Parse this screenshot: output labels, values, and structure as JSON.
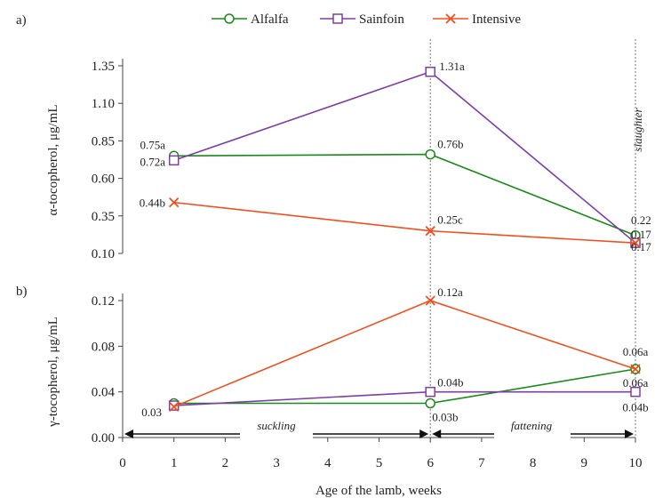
{
  "chart_data": [
    {
      "type": "line",
      "panel_label": "a)",
      "ylabel": "α-tocopherol, μg/mL",
      "ylim": [
        0.1,
        1.35
      ],
      "yticks": [
        "0.10",
        "0.35",
        "0.60",
        "0.85",
        "1.10",
        "1.35"
      ],
      "x": [
        1,
        6,
        10
      ],
      "series": [
        {
          "name": "Alfalfa",
          "color": "#1a8a1a",
          "marker": "circle",
          "values": [
            0.75,
            0.76,
            0.22
          ],
          "labels": [
            "0.75a",
            "0.76b",
            "0.22"
          ]
        },
        {
          "name": "Sainfoin",
          "color": "#7b3fa6",
          "marker": "square",
          "values": [
            0.72,
            1.31,
            0.17
          ],
          "labels": [
            "0.72a",
            "1.31a",
            "0.17"
          ]
        },
        {
          "name": "Intensive",
          "color": "#f0501e",
          "marker": "x",
          "values": [
            0.44,
            0.25,
            0.17
          ],
          "labels": [
            "0.44b",
            "0.25c",
            "0.17"
          ]
        }
      ],
      "annotation": "slaughter",
      "grid": false,
      "legend": "top"
    },
    {
      "type": "line",
      "panel_label": "b)",
      "ylabel": "γ-tocopherol, μg/mL",
      "xlabel": "Age of the lamb, weeks",
      "xlim": [
        0,
        10
      ],
      "xticks": [
        "0",
        "1",
        "2",
        "3",
        "4",
        "5",
        "6",
        "7",
        "8",
        "9",
        "10"
      ],
      "ylim": [
        0.0,
        0.12
      ],
      "yticks": [
        "0.00",
        "0.04",
        "0.08",
        "0.12"
      ],
      "x": [
        1,
        6,
        10
      ],
      "series": [
        {
          "name": "Alfalfa",
          "color": "#1a8a1a",
          "marker": "circle",
          "values": [
            0.03,
            0.03,
            0.06
          ],
          "labels": [
            "",
            "0.03b",
            "0.06a"
          ]
        },
        {
          "name": "Sainfoin",
          "color": "#7b3fa6",
          "marker": "square",
          "values": [
            0.028,
            0.04,
            0.04
          ],
          "labels": [
            "",
            "0.04b",
            "0.04b"
          ]
        },
        {
          "name": "Intensive",
          "color": "#f0501e",
          "marker": "x",
          "values": [
            0.027,
            0.12,
            0.06
          ],
          "labels": [
            "0.03",
            "0.12a",
            "0.06a"
          ]
        }
      ],
      "periods": [
        "suckling",
        "fattening"
      ],
      "grid": false
    }
  ]
}
